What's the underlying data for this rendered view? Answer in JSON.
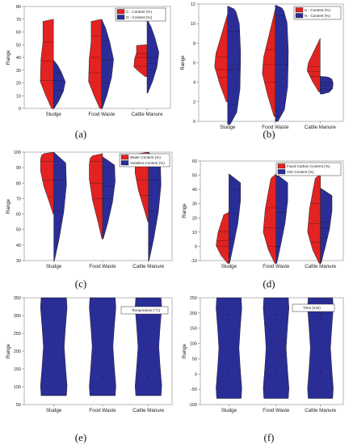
{
  "colors": {
    "red": "#e32222",
    "blue": "#2b2d97",
    "frame": "#888888"
  },
  "chart_data": [
    {
      "panel": "(a)",
      "type": "violin",
      "ylabel": "Range",
      "ylim": [
        0,
        80
      ],
      "yticks": [
        0,
        10,
        20,
        30,
        40,
        50,
        60,
        70,
        80
      ],
      "categories": [
        "Sludge",
        "Food Waste",
        "Cattle Manure"
      ],
      "series": [
        {
          "name": "C - Content (%)",
          "color": "red",
          "side": "left",
          "min": [
            0,
            0,
            25
          ],
          "max": [
            70,
            70,
            50
          ],
          "profile": [
            [
              0,
              0.15
            ],
            [
              0.15,
              0.6
            ],
            [
              0.3,
              1
            ],
            [
              0.55,
              0.95
            ],
            [
              0.75,
              0.8
            ],
            [
              0.9,
              0.8
            ],
            [
              0.98,
              0.8
            ],
            [
              1,
              0
            ]
          ],
          "quartiles": [
            [
              22,
              37,
              52
            ],
            [
              28,
              40,
              57
            ],
            [
              33,
              40,
              43
            ]
          ]
        },
        {
          "name": "O - Content (%)",
          "color": "blue",
          "side": "right",
          "min": [
            0,
            0,
            12
          ],
          "max": [
            38,
            70,
            70
          ],
          "profile": [
            [
              0,
              0.05
            ],
            [
              0.15,
              0.4
            ],
            [
              0.35,
              0.75
            ],
            [
              0.55,
              0.9
            ],
            [
              0.75,
              0.6
            ],
            [
              0.9,
              0.3
            ],
            [
              1,
              0
            ]
          ],
          "quartiles": [
            [
              14,
              22,
              28
            ],
            [
              20,
              38,
              53
            ],
            [
              30,
              35,
              40
            ]
          ]
        }
      ]
    },
    {
      "panel": "(b)",
      "type": "violin",
      "ylabel": "Range",
      "ylim": [
        0,
        12
      ],
      "yticks": [
        0,
        2,
        4,
        6,
        8,
        10,
        12
      ],
      "categories": [
        "Sludge",
        "Food Waste",
        "Cattle Manure"
      ],
      "series": [
        {
          "name": "H - Content (%)",
          "color": "red",
          "side": "left",
          "min": [
            2,
            0.5,
            3
          ],
          "max": [
            11,
            11.5,
            8.5
          ],
          "profile": [
            [
              0,
              0.1
            ],
            [
              0.2,
              0.6
            ],
            [
              0.4,
              1
            ],
            [
              0.55,
              0.9
            ],
            [
              0.75,
              0.5
            ],
            [
              0.9,
              0.2
            ],
            [
              1,
              0
            ]
          ],
          "quartiles": [
            [
              4.5,
              5.3,
              6.6
            ],
            [
              4,
              5.8,
              7.3
            ],
            [
              4.6,
              5.1,
              5.6
            ]
          ]
        },
        {
          "name": "N - Content (%)",
          "color": "blue",
          "side": "right",
          "min": [
            -0.3,
            0,
            2.8
          ],
          "max": [
            11.8,
            11.9,
            4.6
          ],
          "profile": [
            [
              0,
              0.2
            ],
            [
              0.1,
              0.7
            ],
            [
              0.3,
              0.95
            ],
            [
              0.6,
              1
            ],
            [
              0.85,
              0.9
            ],
            [
              0.97,
              0.6
            ],
            [
              1,
              0
            ]
          ],
          "quartiles": [
            [
              1.7,
              5.3,
              9.2
            ],
            [
              0.5,
              5.8,
              10.8
            ],
            [
              3.3,
              3.7,
              4
            ]
          ]
        }
      ]
    },
    {
      "panel": "(c)",
      "type": "violin",
      "ylabel": "Range",
      "ylim": [
        30,
        100
      ],
      "yticks": [
        30,
        40,
        50,
        60,
        70,
        80,
        90,
        100
      ],
      "categories": [
        "Sludge",
        "Food Waste",
        "Cattle Manure"
      ],
      "series": [
        {
          "name": "Water Content (%)",
          "color": "red",
          "side": "left",
          "min": [
            60,
            44,
            55
          ],
          "max": [
            100,
            99,
            100
          ],
          "profile": [
            [
              0,
              0.05
            ],
            [
              0.2,
              0.35
            ],
            [
              0.45,
              0.75
            ],
            [
              0.7,
              1
            ],
            [
              0.88,
              1
            ],
            [
              0.97,
              0.9
            ],
            [
              1,
              0
            ]
          ],
          "quartiles": [
            [
              71,
              82,
              94
            ],
            [
              70,
              80,
              94
            ],
            [
              72,
              82,
              92
            ]
          ]
        },
        {
          "name": "Volatiles Content (%)",
          "color": "blue",
          "side": "right",
          "min": [
            30,
            44,
            30
          ],
          "max": [
            100,
            97,
            100
          ],
          "profile": [
            [
              0,
              0.05
            ],
            [
              0.2,
              0.4
            ],
            [
              0.45,
              0.75
            ],
            [
              0.7,
              0.95
            ],
            [
              0.9,
              0.9
            ],
            [
              1,
              0
            ]
          ],
          "quartiles": [
            [
              41,
              62,
              82
            ],
            [
              70,
              78,
              90
            ],
            [
              40,
              62,
              82
            ]
          ]
        }
      ]
    },
    {
      "panel": "(d)",
      "type": "violin",
      "ylabel": "Range",
      "ylim": [
        -10,
        60
      ],
      "yticks": [
        -10,
        0,
        10,
        20,
        30,
        40,
        50,
        60
      ],
      "categories": [
        "Sludge",
        "Food Waste",
        "Cattle Manure"
      ],
      "series": [
        {
          "name": "Fixed Carbon Content (%)",
          "color": "red",
          "side": "left",
          "min": [
            -12,
            -12,
            -12
          ],
          "max": [
            24,
            51,
            51
          ],
          "profile": [
            [
              0,
              0.1
            ],
            [
              0.15,
              0.6
            ],
            [
              0.35,
              1
            ],
            [
              0.6,
              0.85
            ],
            [
              0.8,
              0.6
            ],
            [
              0.95,
              0.4
            ],
            [
              1,
              0
            ]
          ],
          "quartiles": [
            [
              0,
              4,
              10
            ],
            [
              0,
              13,
              27
            ],
            [
              3,
              16,
              30
            ]
          ]
        },
        {
          "name": "Ash Content (%)",
          "color": "blue",
          "side": "right",
          "min": [
            -12,
            -12,
            -12
          ],
          "max": [
            51,
            51,
            41
          ],
          "profile": [
            [
              0,
              0.05
            ],
            [
              0.2,
              0.35
            ],
            [
              0.45,
              0.7
            ],
            [
              0.7,
              0.9
            ],
            [
              0.9,
              0.9
            ],
            [
              1,
              0
            ]
          ],
          "quartiles": [
            [
              5,
              23,
              40
            ],
            [
              0,
              13,
              24
            ],
            [
              6,
              13,
              17
            ]
          ]
        }
      ]
    },
    {
      "panel": "(e)",
      "type": "violin",
      "ylabel": "Range",
      "ylim": [
        50,
        350
      ],
      "yticks": [
        50,
        100,
        150,
        200,
        250,
        300,
        350
      ],
      "categories": [
        "Sludge",
        "Food Waste",
        "Cattle Manure"
      ],
      "series": [
        {
          "name": "Temperature (°C)",
          "color": "blue",
          "side": "both",
          "min": [
            75,
            75,
            75
          ],
          "max": [
            350,
            350,
            350
          ],
          "profile": [
            [
              0,
              0.95
            ],
            [
              0.1,
              1
            ],
            [
              0.3,
              0.88
            ],
            [
              0.5,
              0.78
            ],
            [
              0.7,
              0.88
            ],
            [
              0.9,
              1
            ],
            [
              1,
              0.95
            ]
          ],
          "points": [
            [
              125,
              310
            ],
            [
              125,
              310
            ],
            [
              125,
              310
            ]
          ]
        }
      ]
    },
    {
      "panel": "(f)",
      "type": "violin",
      "ylabel": "Range",
      "ylim": [
        -100,
        250
      ],
      "yticks": [
        -100,
        -50,
        0,
        50,
        100,
        150,
        200,
        250
      ],
      "categories": [
        "Sludge",
        "Food Waste",
        "Cattle Manure"
      ],
      "series": [
        {
          "name": "Time (min)",
          "color": "blue",
          "side": "both",
          "min": [
            -80,
            -80,
            -80
          ],
          "max": [
            250,
            250,
            250
          ],
          "profile": [
            [
              0,
              0.95
            ],
            [
              0.1,
              1
            ],
            [
              0.3,
              0.88
            ],
            [
              0.5,
              0.78
            ],
            [
              0.7,
              0.88
            ],
            [
              0.9,
              1
            ],
            [
              1,
              0.95
            ]
          ],
          "points": [
            [
              10,
              195
            ],
            [
              10,
              195
            ],
            [
              10,
              195
            ]
          ]
        }
      ]
    }
  ]
}
